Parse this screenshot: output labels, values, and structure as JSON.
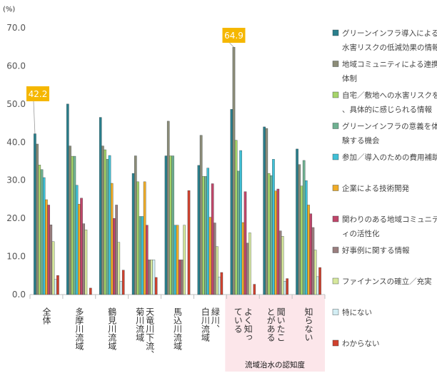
{
  "chart_data": {
    "type": "bar",
    "ylabel": "(%)",
    "ylim": [
      0,
      70
    ],
    "yticks": [
      "0.0",
      "10.0",
      "20.0",
      "30.0",
      "40.0",
      "50.0",
      "60.0",
      "70.0"
    ],
    "grid": false,
    "legend_position": "right",
    "categories": [
      "全体",
      "多摩川流域",
      "鶴見川流域",
      "天竜川下流、菊川流域",
      "馬込川流域",
      "緑川、白川流域",
      "よく知っている",
      "聞いたことがある",
      "知らない"
    ],
    "group_label": "流域治水の認知度",
    "callouts": [
      {
        "category": 0,
        "series": 0,
        "text": "42.2"
      },
      {
        "category": 6,
        "series": 1,
        "text": "64.9"
      }
    ],
    "series": [
      {
        "name": "グリーンインフラ導入による水害リスクの低減効果の情報",
        "color": "#2a7f8c",
        "values": [
          42.2,
          50.0,
          46.5,
          31.8,
          36.4,
          33.9,
          48.6,
          44.0,
          38.2
        ]
      },
      {
        "name": "地域コミュニティによる連携体制",
        "color": "#8c8c78",
        "values": [
          39.5,
          39.0,
          39.0,
          36.4,
          45.5,
          41.8,
          64.9,
          43.6,
          34.1
        ]
      },
      {
        "name": "自宅／敷地への水害リスクを、具体的に感じられる情報",
        "color": "#a6d46a",
        "values": [
          34.0,
          36.3,
          38.0,
          29.6,
          36.4,
          31.0,
          40.5,
          31.8,
          28.5
        ]
      },
      {
        "name": "グリーンインフラの意義を体験する機会",
        "color": "#6fb191",
        "values": [
          32.8,
          36.3,
          35.5,
          20.5,
          36.4,
          31.0,
          32.4,
          31.2,
          35.2
        ]
      },
      {
        "name": "参加／導入のための費用補助",
        "color": "#40c0d6",
        "values": [
          30.7,
          28.7,
          36.5,
          20.5,
          18.2,
          33.2,
          37.8,
          35.5,
          29.9
        ]
      },
      {
        "name": "企業による技術開発",
        "color": "#f0ac28",
        "values": [
          24.9,
          23.7,
          29.2,
          29.6,
          18.2,
          20.3,
          18.9,
          27.2,
          23.5
        ]
      },
      {
        "name": "関わりのある地域コミュニティの活性化",
        "color": "#c0466a",
        "values": [
          23.5,
          25.3,
          20.0,
          18.2,
          9.1,
          29.1,
          27.0,
          27.7,
          21.2
        ]
      },
      {
        "name": "好事例に関する情報",
        "color": "#9a7e7e",
        "values": [
          18.3,
          18.6,
          23.5,
          9.1,
          9.1,
          18.8,
          13.5,
          16.7,
          17.6
        ]
      },
      {
        "name": "ファイナンスの確立／充実",
        "color": "#d7e89c",
        "values": [
          13.9,
          17.0,
          13.7,
          9.1,
          18.2,
          12.6,
          16.2,
          15.3,
          11.7
        ]
      },
      {
        "name": "特にない",
        "color": "#d3eef4",
        "values": [
          4.0,
          0.0,
          3.5,
          9.1,
          0.0,
          4.6,
          0.0,
          3.5,
          4.7
        ]
      },
      {
        "name": "わからない",
        "color": "#d0412e",
        "values": [
          5.0,
          1.7,
          6.4,
          4.5,
          27.3,
          5.8,
          2.7,
          4.2,
          7.1
        ]
      }
    ]
  }
}
